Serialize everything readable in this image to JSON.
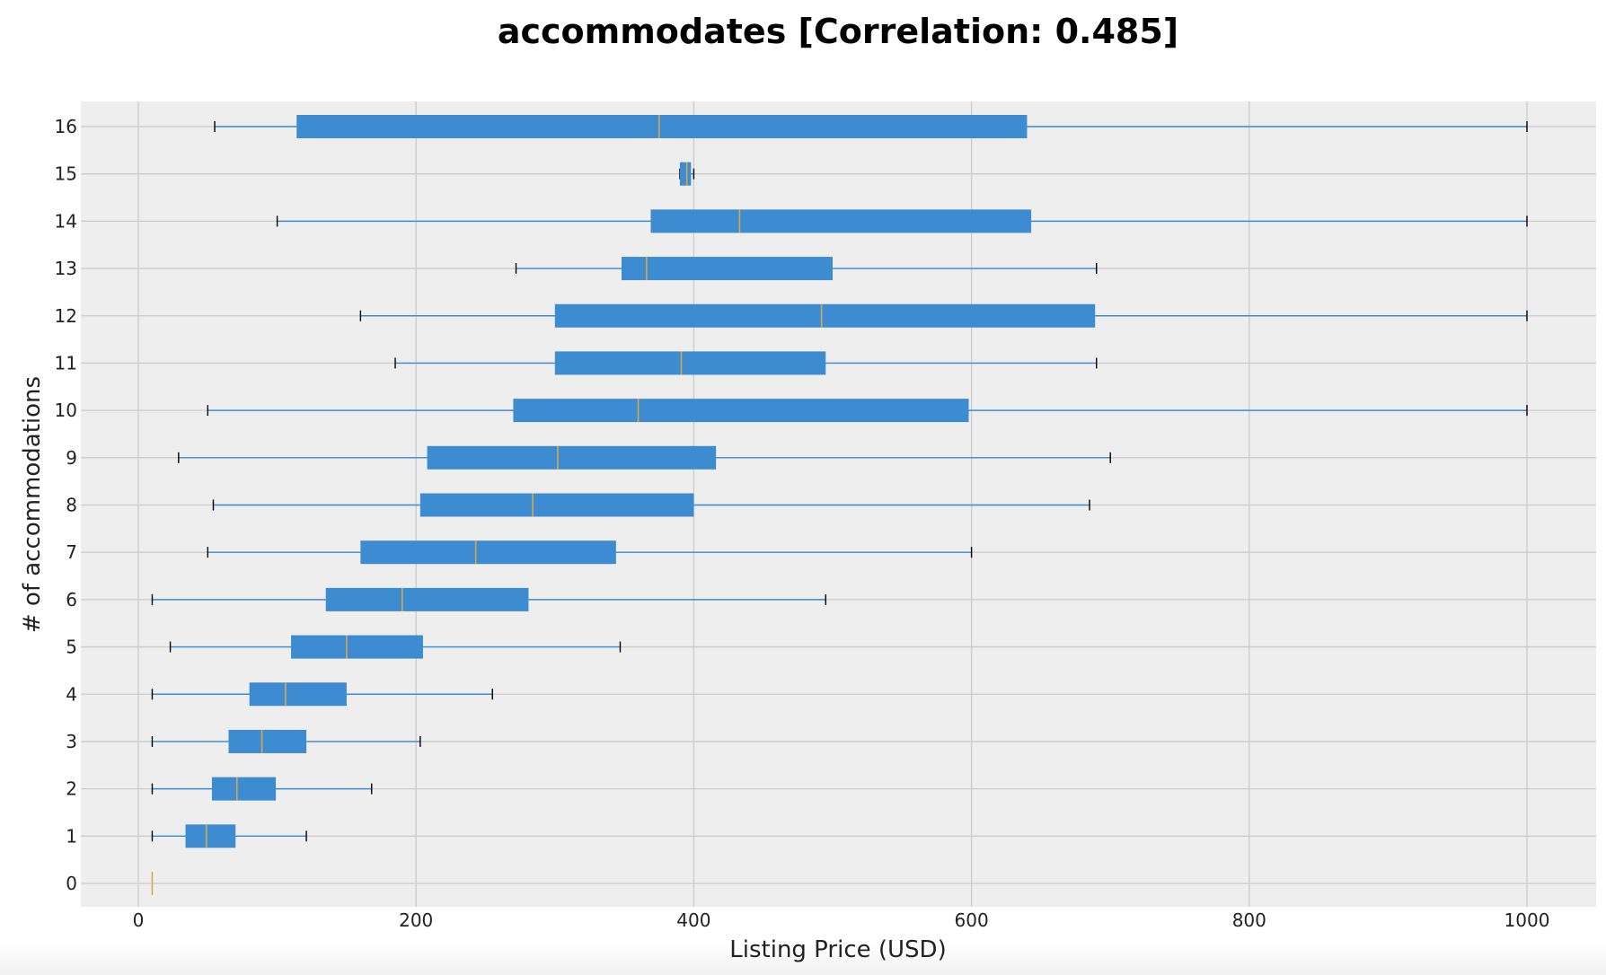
{
  "chart_data": {
    "type": "boxplot",
    "orientation": "horizontal",
    "title": "accommodates [Correlation: 0.485]",
    "xlabel": "Listing Price (USD)",
    "ylabel": "# of accommodations",
    "xlim": [
      -40,
      1050
    ],
    "xticks": [
      0,
      200,
      400,
      600,
      800,
      1000
    ],
    "categories": [
      "0",
      "1",
      "2",
      "3",
      "4",
      "5",
      "6",
      "7",
      "8",
      "9",
      "10",
      "11",
      "12",
      "13",
      "14",
      "15",
      "16"
    ],
    "grid": true,
    "colors": {
      "box": "#3d8bd0",
      "median": "#d8a64c",
      "whisker": "#3d8bd0",
      "cap": "#000000",
      "plot_bg": "#eeeeee",
      "grid": "#cbcbcb"
    },
    "boxes": [
      {
        "category": "0",
        "whislo": 10,
        "q1": 10,
        "med": 10,
        "q3": 10,
        "whishi": 10
      },
      {
        "category": "1",
        "whislo": 10,
        "q1": 34,
        "med": 49,
        "q3": 70,
        "whishi": 121
      },
      {
        "category": "2",
        "whislo": 10,
        "q1": 53,
        "med": 71,
        "q3": 99,
        "whishi": 168
      },
      {
        "category": "3",
        "whislo": 10,
        "q1": 65,
        "med": 89,
        "q3": 121,
        "whishi": 203
      },
      {
        "category": "4",
        "whislo": 10,
        "q1": 80,
        "med": 106,
        "q3": 150,
        "whishi": 255
      },
      {
        "category": "5",
        "whislo": 23,
        "q1": 110,
        "med": 150,
        "q3": 205,
        "whishi": 347
      },
      {
        "category": "6",
        "whislo": 10,
        "q1": 135,
        "med": 190,
        "q3": 281,
        "whishi": 495
      },
      {
        "category": "7",
        "whislo": 50,
        "q1": 160,
        "med": 243,
        "q3": 344,
        "whishi": 600
      },
      {
        "category": "8",
        "whislo": 54,
        "q1": 203,
        "med": 284,
        "q3": 400,
        "whishi": 685
      },
      {
        "category": "9",
        "whislo": 29,
        "q1": 208,
        "med": 302,
        "q3": 416,
        "whishi": 700
      },
      {
        "category": "10",
        "whislo": 50,
        "q1": 270,
        "med": 360,
        "q3": 598,
        "whishi": 1000
      },
      {
        "category": "11",
        "whislo": 185,
        "q1": 300,
        "med": 391,
        "q3": 495,
        "whishi": 690
      },
      {
        "category": "12",
        "whislo": 160,
        "q1": 300,
        "med": 492,
        "q3": 689,
        "whishi": 1000
      },
      {
        "category": "13",
        "whislo": 272,
        "q1": 348,
        "med": 366,
        "q3": 500,
        "whishi": 690
      },
      {
        "category": "14",
        "whislo": 100,
        "q1": 369,
        "med": 433,
        "q3": 643,
        "whishi": 1000
      },
      {
        "category": "15",
        "whislo": 390,
        "q1": 390,
        "med": 395,
        "q3": 398,
        "whishi": 400
      },
      {
        "category": "16",
        "whislo": 55,
        "q1": 114,
        "med": 375,
        "q3": 640,
        "whishi": 1000
      }
    ]
  }
}
